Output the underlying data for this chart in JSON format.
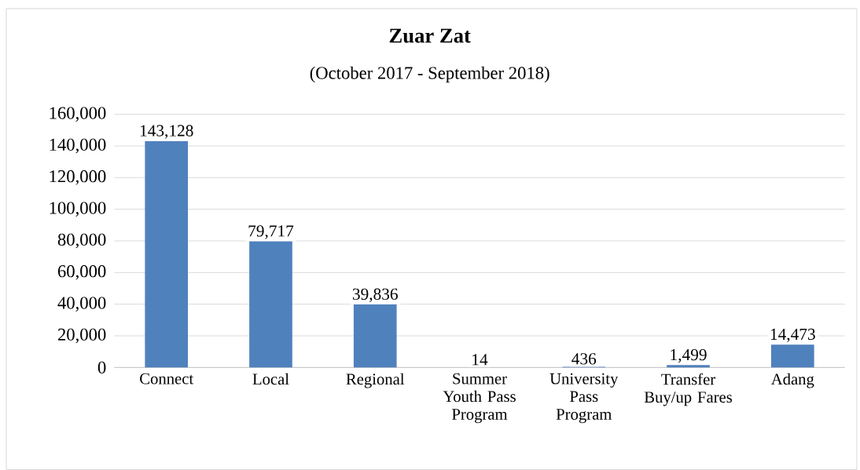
{
  "chart_data": {
    "type": "bar",
    "title": "Zuar Zat",
    "subtitle": "(October 2017 - September 2018)",
    "categories": [
      "Connect",
      "Local",
      "Regional",
      "Summer Youth Pass Program",
      "University Pass Program",
      "Transfer Buy/up Fares",
      "Adang"
    ],
    "values": [
      143128,
      79717,
      39836,
      14,
      436,
      1499,
      14473
    ],
    "color": "#4f81bd",
    "ylim": [
      0,
      160000
    ],
    "yticks": [
      {
        "value": 0,
        "label": "0"
      },
      {
        "value": 20000,
        "label": "20,000"
      },
      {
        "value": 40000,
        "label": "40,000"
      },
      {
        "value": 60000,
        "label": "60,000"
      },
      {
        "value": 80000,
        "label": "80,000"
      },
      {
        "value": 100000,
        "label": "100,000"
      },
      {
        "value": 120000,
        "label": "120,000"
      },
      {
        "value": 140000,
        "label": "140,000"
      },
      {
        "value": 160000,
        "label": "160,000"
      }
    ],
    "grid": "y",
    "value_labels": [
      "143,128",
      "79,717",
      "39,836",
      "14",
      "436",
      "1,499",
      "14,473"
    ]
  }
}
